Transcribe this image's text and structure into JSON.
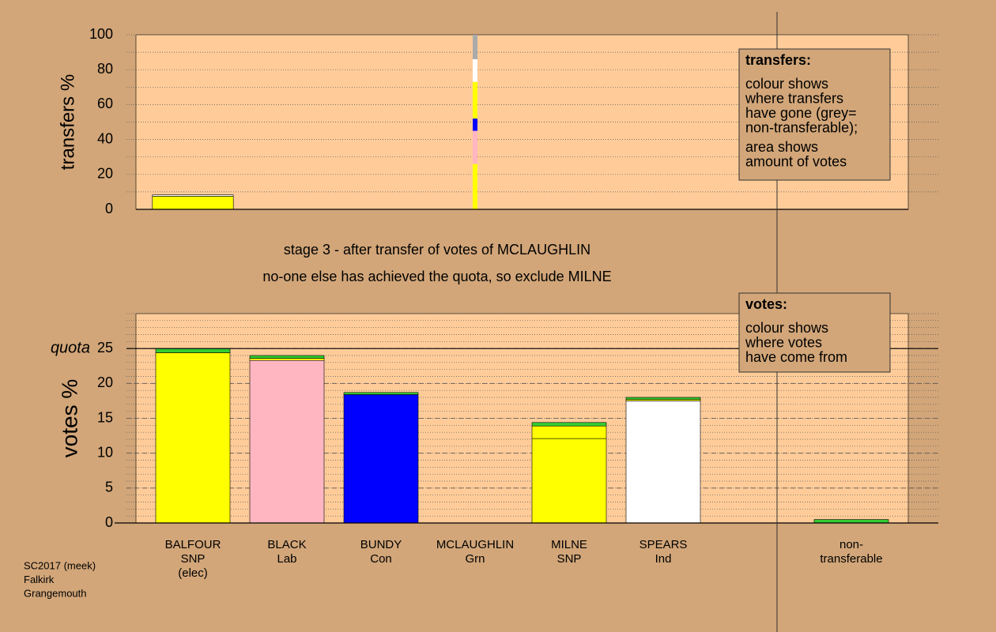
{
  "chart_data": [
    {
      "type": "bar",
      "stacked": true,
      "ylabel": "transfers %",
      "ylim": [
        0,
        100
      ],
      "yticks": [
        0,
        20,
        40,
        60,
        80,
        100
      ],
      "minor_step": 10,
      "widths": [
        0.86,
        0,
        0,
        0.05,
        0,
        0,
        0
      ],
      "series": [
        {
          "color": "#ffff00",
          "values": [
            7.5,
            0,
            0,
            26,
            0,
            0,
            0
          ]
        },
        {
          "color": "#ffb6c1",
          "values": [
            0,
            0,
            0,
            19,
            0,
            0,
            0
          ]
        },
        {
          "color": "#0000ff",
          "values": [
            0,
            0,
            0,
            7,
            0,
            0,
            0
          ]
        },
        {
          "color": "#ffff00",
          "values": [
            0,
            0,
            0,
            21,
            0,
            0,
            0
          ]
        },
        {
          "color": "#ffffff",
          "values": [
            0.8,
            0,
            0,
            13,
            0,
            0,
            0
          ]
        },
        {
          "color": "#aaaaaa",
          "values": [
            0,
            0,
            0,
            14,
            0,
            0,
            0
          ]
        }
      ],
      "legend": {
        "title": "transfers:",
        "lines": [
          [
            "colour shows",
            "where transfers",
            "have gone (grey=",
            "non-transferable);"
          ],
          [
            "area shows",
            "amount of votes"
          ]
        ]
      }
    },
    {
      "type": "bar",
      "stacked": true,
      "ylabel": "votes %",
      "categories": [
        [
          "BALFOUR",
          "SNP",
          "(elec)"
        ],
        [
          "BLACK",
          "Lab"
        ],
        [
          "BUNDY",
          "Con"
        ],
        [
          "MCLAUGHLIN",
          "Grn"
        ],
        [
          "MILNE",
          "SNP"
        ],
        [
          "SPEARS",
          "Ind"
        ],
        [
          "non-",
          "transferable"
        ]
      ],
      "ylim": [
        0,
        30
      ],
      "yticks": [
        0,
        5,
        10,
        15,
        20,
        25
      ],
      "minor_step": 1,
      "quota": {
        "value": 25,
        "label": "quota"
      },
      "series": [
        {
          "color": "#ffff00",
          "values": [
            24.4,
            0,
            0,
            0,
            12.1,
            0,
            0
          ]
        },
        {
          "color": "#ffb6c1",
          "values": [
            0,
            23.3,
            0,
            0,
            0,
            0,
            0
          ]
        },
        {
          "color": "#0000ff",
          "values": [
            0,
            0,
            18.4,
            0,
            0,
            0,
            0
          ]
        },
        {
          "color": "#ffffff",
          "values": [
            0,
            0,
            0,
            0,
            0,
            17.5,
            0
          ]
        },
        {
          "color": "#ffff00",
          "values": [
            0,
            0.3,
            0,
            0,
            1.8,
            0.2,
            0
          ]
        },
        {
          "color": "#33cc33",
          "values": [
            0.6,
            0.4,
            0.3,
            0,
            0.5,
            0.3,
            0.5
          ]
        }
      ],
      "legend": {
        "title": "votes:",
        "lines": [
          [
            "colour shows",
            "where votes",
            "have come from"
          ]
        ]
      }
    }
  ],
  "stage_text": [
    "stage 3 - after transfer of votes of MCLAUGHLIN",
    "no-one else has achieved the quota, so exclude MILNE"
  ],
  "footer": [
    "SC2017 (meek)",
    "Falkirk",
    "Grangemouth"
  ]
}
